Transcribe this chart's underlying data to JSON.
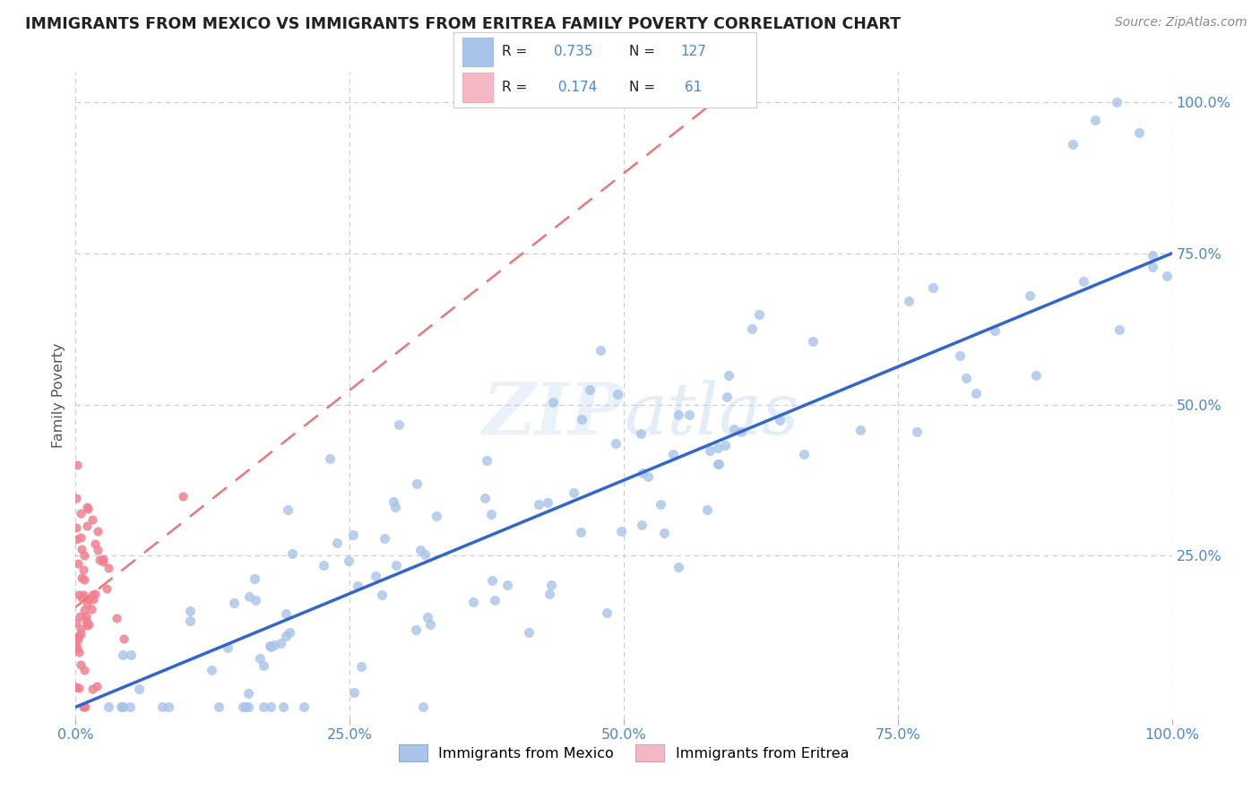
{
  "title": "IMMIGRANTS FROM MEXICO VS IMMIGRANTS FROM ERITREA FAMILY POVERTY CORRELATION CHART",
  "source": "Source: ZipAtlas.com",
  "ylabel": "Family Poverty",
  "xlim": [
    0,
    1.0
  ],
  "ylim": [
    0,
    1.0
  ],
  "xtick_labels": [
    "0.0%",
    "25.0%",
    "50.0%",
    "75.0%",
    "100.0%"
  ],
  "xtick_vals": [
    0.0,
    0.25,
    0.5,
    0.75,
    1.0
  ],
  "ytick_labels": [
    "25.0%",
    "50.0%",
    "75.0%",
    "100.0%"
  ],
  "ytick_vals": [
    0.25,
    0.5,
    0.75,
    1.0
  ],
  "mexico_color": "#a8c4e8",
  "eritrea_color": "#f08090",
  "mexico_R": 0.735,
  "mexico_N": 127,
  "eritrea_R": 0.174,
  "eritrea_N": 61,
  "mexico_line_color": "#3366cc",
  "eritrea_line_color": "#e87878",
  "watermark_text": "ZIP atlas",
  "background_color": "#ffffff",
  "grid_color": "#c8c8d8",
  "title_color": "#222222",
  "axis_label_color": "#555555",
  "tick_label_color": "#4a86c8",
  "legend_R_color": "#4a86c8",
  "legend_text_color": "#222222",
  "source_color": "#888888"
}
